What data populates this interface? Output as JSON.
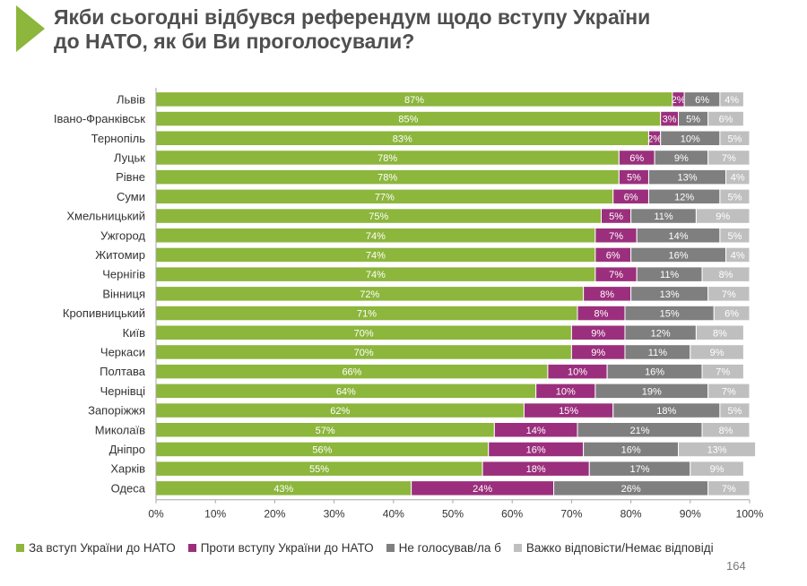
{
  "title": {
    "line1": "Якби сьогодні відбувся референдум щодо вступу України",
    "line2": "до НАТО, як би Ви проголосували?"
  },
  "page_number": "164",
  "colors": {
    "accent": "#8cb63c",
    "for": "#8cb63c",
    "against": "#9b2f7d",
    "not_vote": "#7f7f7f",
    "hard_to_say": "#bfbfbf"
  },
  "chart_data": {
    "type": "bar",
    "orientation": "horizontal",
    "stacked": true,
    "categories": [
      "Львів",
      "Івано-Франківськ",
      "Тернопіль",
      "Луцьк",
      "Рівне",
      "Суми",
      "Хмельницький",
      "Ужгород",
      "Житомир",
      "Чернігів",
      "Вінниця",
      "Кропивницький",
      "Київ",
      "Черкаси",
      "Полтава",
      "Чернівці",
      "Запоріжжя",
      "Миколаїв",
      "Дніпро",
      "Харків",
      "Одеса"
    ],
    "series": [
      {
        "name": "За вступ України до НАТО",
        "color": "#8cb63c",
        "values": [
          87,
          85,
          83,
          78,
          78,
          77,
          75,
          74,
          74,
          74,
          72,
          71,
          70,
          70,
          66,
          64,
          62,
          57,
          56,
          55,
          43
        ]
      },
      {
        "name": "Проти вступу України до НАТО",
        "color": "#9b2f7d",
        "values": [
          2,
          3,
          2,
          6,
          5,
          6,
          5,
          7,
          6,
          7,
          8,
          8,
          9,
          9,
          10,
          10,
          15,
          14,
          16,
          18,
          24
        ]
      },
      {
        "name": "Не голосував/ла б",
        "color": "#7f7f7f",
        "values": [
          6,
          5,
          10,
          9,
          13,
          12,
          11,
          14,
          16,
          11,
          13,
          15,
          12,
          11,
          16,
          19,
          18,
          21,
          16,
          17,
          26
        ]
      },
      {
        "name": "Важко відповісти/Немає відповіді",
        "color": "#bfbfbf",
        "values": [
          4,
          6,
          5,
          7,
          4,
          5,
          9,
          5,
          4,
          8,
          7,
          6,
          8,
          9,
          7,
          7,
          5,
          8,
          13,
          9,
          7
        ]
      }
    ],
    "xlim": [
      0,
      100
    ],
    "xticks": [
      "0%",
      "10%",
      "20%",
      "30%",
      "40%",
      "50%",
      "60%",
      "70%",
      "80%",
      "90%",
      "100%"
    ],
    "label_suffix": "%",
    "grid": false,
    "legend_position": "bottom"
  }
}
